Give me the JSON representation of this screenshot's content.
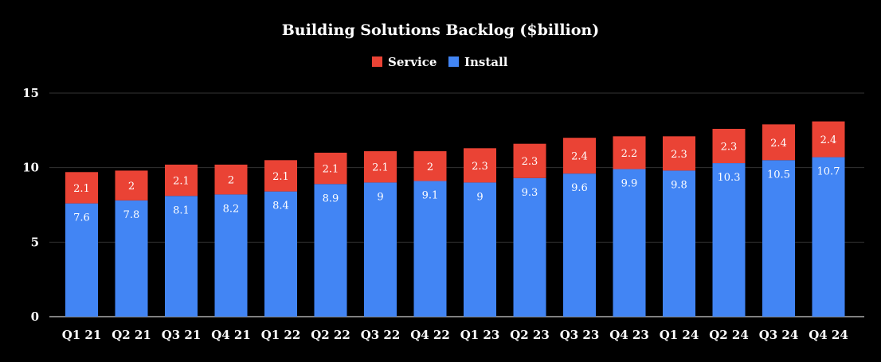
{
  "chart_data": {
    "type": "bar",
    "stacked": true,
    "title": "Building Solutions Backlog ($billion)",
    "xlabel": "",
    "ylabel": "",
    "ylim": [
      0,
      15
    ],
    "yticks": [
      "0",
      "5",
      "10",
      "15"
    ],
    "grid": true,
    "legend_position": "top-center",
    "categories": [
      "Q1 21",
      "Q2 21",
      "Q3 21",
      "Q4 21",
      "Q1 22",
      "Q2 22",
      "Q3 22",
      "Q4 22",
      "Q1 23",
      "Q2 23",
      "Q3 23",
      "Q4 23",
      "Q1 24",
      "Q2 24",
      "Q3 24",
      "Q4 24"
    ],
    "series": [
      {
        "name": "Install",
        "color": "#4285f4",
        "values": [
          7.6,
          7.8,
          8.1,
          8.2,
          8.4,
          8.9,
          9,
          9.1,
          9,
          9.3,
          9.6,
          9.9,
          9.8,
          10.3,
          10.5,
          10.7
        ],
        "labels": [
          "7.6",
          "7.8",
          "8.1",
          "8.2",
          "8.4",
          "8.9",
          "9",
          "9.1",
          "9",
          "9.3",
          "9.6",
          "9.9",
          "9.8",
          "10.3",
          "10.5",
          "10.7"
        ]
      },
      {
        "name": "Service",
        "color": "#ea4335",
        "values": [
          2.1,
          2,
          2.1,
          2,
          2.1,
          2.1,
          2.1,
          2,
          2.3,
          2.3,
          2.4,
          2.2,
          2.3,
          2.3,
          2.4,
          2.4
        ],
        "labels": [
          "2.1",
          "2",
          "2.1",
          "2",
          "2.1",
          "2.1",
          "2.1",
          "2",
          "2.3",
          "2.3",
          "2.4",
          "2.2",
          "2.3",
          "2.3",
          "2.4",
          "2.4"
        ]
      }
    ],
    "legend_order": [
      "Service",
      "Install"
    ]
  }
}
